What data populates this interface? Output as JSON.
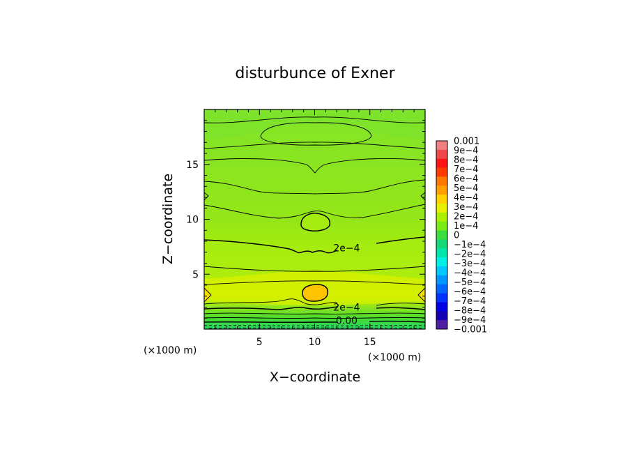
{
  "chart_data": {
    "type": "heatmap",
    "title": "disturbunce of Exner",
    "xlabel": "X−coordinate",
    "ylabel": "Z−coordinate",
    "x_unit": "(×1000 m)",
    "y_unit": "(×1000 m)",
    "xlim": [
      0,
      20
    ],
    "ylim": [
      0,
      20
    ],
    "x_ticks": [
      "5",
      "10",
      "15"
    ],
    "y_ticks": [
      "5",
      "10",
      "15"
    ],
    "x_tick_values": [
      5,
      10,
      15
    ],
    "y_tick_values": [
      5,
      10,
      15
    ],
    "colorbar": {
      "labels": [
        "0.001",
        "9e−4",
        "8e−4",
        "7e−4",
        "6e−4",
        "5e−4",
        "4e−4",
        "3e−4",
        "2e−4",
        "1e−4",
        "0",
        "−1e−4",
        "−2e−4",
        "−3e−4",
        "−4e−4",
        "−5e−4",
        "−6e−4",
        "−7e−4",
        "−8e−4",
        "−9e−4",
        "−0.001"
      ],
      "colors": [
        "#f08080",
        "#f04848",
        "#ff1414",
        "#ff3c00",
        "#ff7800",
        "#ffa000",
        "#ffd200",
        "#e6f000",
        "#aaf000",
        "#78eb14",
        "#3cdc3c",
        "#14d778",
        "#00e6aa",
        "#00f0e6",
        "#00c8ff",
        "#0096ff",
        "#0064ff",
        "#0032ff",
        "#0000e6",
        "#1400b4",
        "#501ea0"
      ]
    },
    "contour_labels": [
      {
        "text": "2e−4",
        "x": 12.9,
        "z": 7.4
      },
      {
        "text": "2e−4",
        "x": 12.9,
        "z": 2.0
      },
      {
        "text": "0.00",
        "x": 12.9,
        "z": 0.8
      }
    ],
    "field_summary": [
      {
        "region": "upper domain z 8–20",
        "approx_value": "1e−4 to 2e−4"
      },
      {
        "region": "center blob x≈10 z≈9.6",
        "approx_value": "2e−4 to 3e−4"
      },
      {
        "region": "lower band z 2–7",
        "approx_value": "2e−4 to 4e−4"
      },
      {
        "region": "center blob x≈10 z≈3.2",
        "approx_value": "4e−4 to 5e−4"
      },
      {
        "region": "near surface z 0–1",
        "approx_value": "−1e−4 to 0"
      }
    ]
  }
}
